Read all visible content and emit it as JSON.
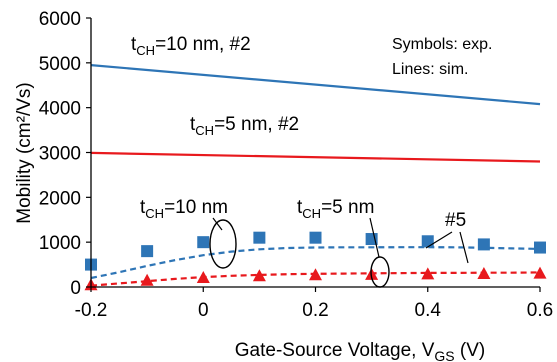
{
  "chart_data": {
    "type": "scatter",
    "xlabel": "Gate-Source Voltage, V",
    "xlabel_sub": "GS",
    "xlabel_unit": " (V)",
    "ylabel": "Mobility  (cm²/Vs)",
    "xlim": [
      -0.2,
      0.6
    ],
    "ylim": [
      0,
      6000
    ],
    "xticks": [
      "-0.2",
      "0",
      "0.2",
      "0.4",
      "0.6"
    ],
    "xtick_values": [
      -0.2,
      0.0,
      0.2,
      0.4,
      0.6
    ],
    "yticks": [
      "0",
      "1000",
      "2000",
      "3000",
      "4000",
      "5000",
      "6000"
    ],
    "ytick_values": [
      0,
      1000,
      2000,
      3000,
      4000,
      5000,
      6000
    ],
    "grid": false,
    "series": [
      {
        "style": "line-solid",
        "color": "#2e75b6",
        "x": [
          -0.2,
          0.6
        ],
        "y": [
          4950,
          4080
        ]
      },
      {
        "style": "line-solid",
        "color": "#e8191d",
        "x": [
          -0.2,
          0.6
        ],
        "y": [
          2990,
          2800
        ]
      },
      {
        "style": "line-dashed",
        "color": "#2e75b6",
        "x": [
          -0.2,
          -0.15,
          -0.1,
          -0.05,
          0.0,
          0.05,
          0.1,
          0.15,
          0.2,
          0.25,
          0.3,
          0.35,
          0.4,
          0.45,
          0.5,
          0.55,
          0.6
        ],
        "y": [
          200,
          330,
          470,
          600,
          710,
          790,
          840,
          870,
          880,
          885,
          885,
          888,
          888,
          885,
          875,
          860,
          850
        ]
      },
      {
        "style": "line-dashed",
        "color": "#e8191d",
        "x": [
          -0.2,
          -0.15,
          -0.1,
          -0.05,
          0.0,
          0.05,
          0.1,
          0.15,
          0.2,
          0.25,
          0.3,
          0.35,
          0.4,
          0.45,
          0.5,
          0.55,
          0.6
        ],
        "y": [
          30,
          80,
          130,
          180,
          220,
          250,
          270,
          285,
          295,
          300,
          305,
          310,
          315,
          315,
          320,
          320,
          325
        ]
      },
      {
        "style": "marker-square",
        "color": "#2e75b6",
        "x": [
          -0.2,
          -0.1,
          0.0,
          0.1,
          0.2,
          0.3,
          0.4,
          0.5,
          0.6
        ],
        "y": [
          500,
          800,
          1000,
          1100,
          1100,
          1070,
          1020,
          950,
          880
        ]
      },
      {
        "style": "marker-triangle",
        "color": "#e8191d",
        "x": [
          -0.2,
          -0.1,
          0.0,
          0.1,
          0.2,
          0.3,
          0.4,
          0.5,
          0.6
        ],
        "y": [
          40,
          140,
          200,
          240,
          260,
          270,
          280,
          290,
          300
        ]
      }
    ],
    "annotations": {
      "blue_sim_label": {
        "prefix": "t",
        "sub": "CH",
        "suffix": "=10 nm, #2"
      },
      "red_sim_label": {
        "prefix": "t",
        "sub": "CH",
        "suffix": "=5 nm, #2"
      },
      "blue_exp_label": {
        "prefix": "t",
        "sub": "CH",
        "suffix": "=10 nm"
      },
      "red_exp_label": {
        "prefix": "t",
        "sub": "CH",
        "suffix": "=5 nm"
      },
      "ref_label": "#5",
      "legend_line1": "Symbols: exp.",
      "legend_line2": "Lines: sim."
    }
  }
}
